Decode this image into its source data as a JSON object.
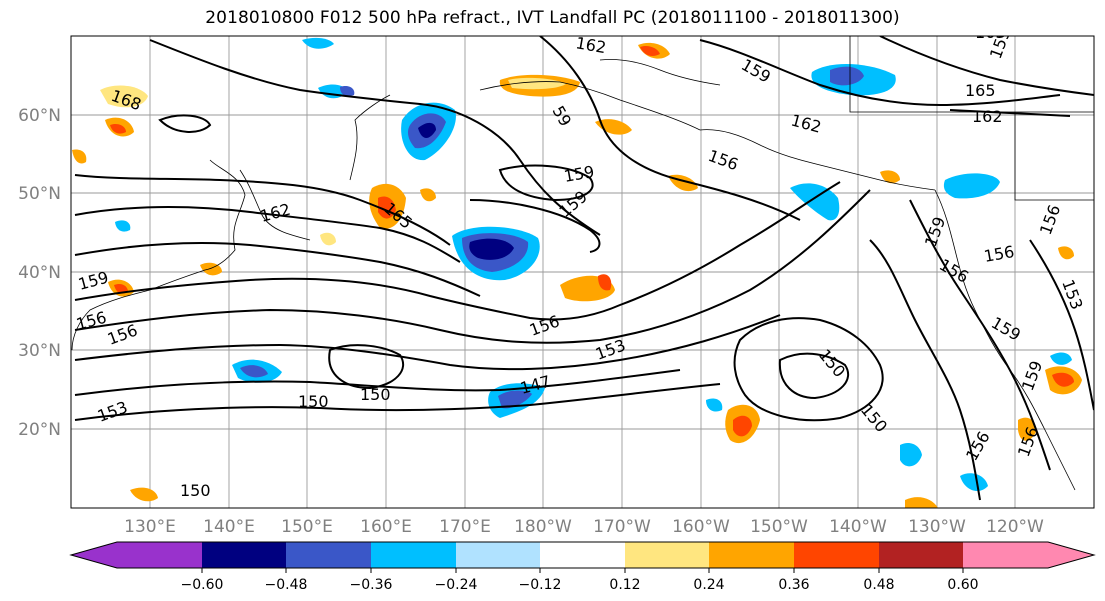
{
  "title": "2018010800 F012 500 hPa refract., IVT Landfall PC (2018011100 - 2018011300)",
  "map": {
    "lat_labels": [
      "60°N",
      "50°N",
      "40°N",
      "30°N",
      "20°N"
    ],
    "lon_labels": [
      "130°E",
      "140°E",
      "150°E",
      "160°E",
      "170°E",
      "180°W",
      "170°W",
      "160°W",
      "150°W",
      "140°W",
      "130°W",
      "120°W"
    ],
    "contour_labels": [
      "168",
      "162",
      "159",
      "59",
      "162",
      "156",
      "165",
      "159",
      "162",
      "165",
      "159",
      "159",
      "156",
      "156",
      "156",
      "153",
      "150",
      "150",
      "150",
      "147",
      "153",
      "159",
      "156",
      "159",
      "153",
      "159",
      "156",
      "150",
      "156",
      "156",
      "159",
      "156",
      "150",
      "165",
      "162"
    ]
  },
  "colorbar": {
    "tick_labels": [
      "−0.60",
      "−0.48",
      "−0.36",
      "−0.24",
      "−0.12",
      "0.12",
      "0.24",
      "0.36",
      "0.48",
      "0.60"
    ],
    "colors": [
      "#9932cc",
      "#000080",
      "#3a57c8",
      "#00bfff",
      "#b0e2ff",
      "#ffffff",
      "#ffe680",
      "#ffa500",
      "#ff4500",
      "#b22222",
      "#ff88b0"
    ]
  }
}
